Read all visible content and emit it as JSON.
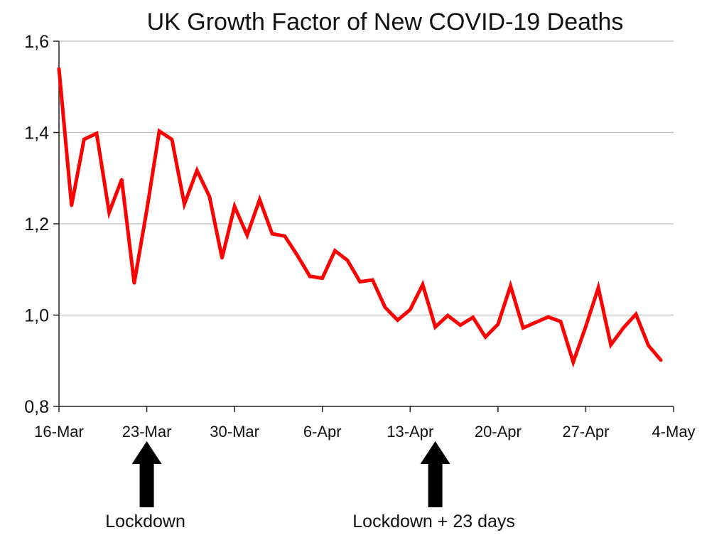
{
  "chart_data": {
    "type": "line",
    "title": "UK Growth Factor of New COVID-19 Deaths",
    "xlabel": "",
    "ylabel": "",
    "ylim": [
      0.8,
      1.6
    ],
    "y_ticks": [
      "0,8",
      "1,0",
      "1,2",
      "1,4",
      "1,6"
    ],
    "y_tick_values": [
      0.8,
      1.0,
      1.2,
      1.4,
      1.6
    ],
    "x_tick_labels": [
      "16-Mar",
      "23-Mar",
      "30-Mar",
      "6-Apr",
      "13-Apr",
      "20-Apr",
      "27-Apr",
      "4-May"
    ],
    "x_tick_dates": [
      "2020-03-16",
      "2020-03-23",
      "2020-03-30",
      "2020-04-06",
      "2020-04-13",
      "2020-04-20",
      "2020-04-27",
      "2020-05-04"
    ],
    "grid": true,
    "legend": "none",
    "series": [
      {
        "color": "#ff0000",
        "x": [
          "2020-03-16",
          "2020-03-17",
          "2020-03-18",
          "2020-03-19",
          "2020-03-20",
          "2020-03-21",
          "2020-03-22",
          "2020-03-23",
          "2020-03-24",
          "2020-03-25",
          "2020-03-26",
          "2020-03-27",
          "2020-03-28",
          "2020-03-29",
          "2020-03-30",
          "2020-03-31",
          "2020-04-01",
          "2020-04-02",
          "2020-04-03",
          "2020-04-04",
          "2020-04-05",
          "2020-04-06",
          "2020-04-07",
          "2020-04-08",
          "2020-04-09",
          "2020-04-10",
          "2020-04-11",
          "2020-04-12",
          "2020-04-13",
          "2020-04-14",
          "2020-04-15",
          "2020-04-16",
          "2020-04-17",
          "2020-04-18",
          "2020-04-19",
          "2020-04-20",
          "2020-04-21",
          "2020-04-22",
          "2020-04-23",
          "2020-04-24",
          "2020-04-25",
          "2020-04-26",
          "2020-04-27",
          "2020-04-28",
          "2020-04-29",
          "2020-04-30",
          "2020-05-01",
          "2020-05-02",
          "2020-05-03"
        ],
        "values": [
          1.54,
          1.24,
          1.385,
          1.398,
          1.225,
          1.297,
          1.07,
          1.23,
          1.403,
          1.385,
          1.243,
          1.317,
          1.26,
          1.125,
          1.238,
          1.175,
          1.253,
          1.178,
          1.173,
          1.131,
          1.085,
          1.081,
          1.141,
          1.12,
          1.073,
          1.077,
          1.017,
          0.989,
          1.012,
          1.067,
          0.974,
          0.999,
          0.978,
          0.995,
          0.952,
          0.98,
          1.064,
          0.972,
          0.984,
          0.996,
          0.986,
          0.897,
          0.975,
          1.06,
          0.935,
          0.972,
          1.002,
          0.933,
          0.901
        ]
      }
    ],
    "annotations": [
      {
        "label": "Lockdown",
        "date": "2020-03-23"
      },
      {
        "label": "Lockdown + 23 days",
        "date": "2020-04-15"
      }
    ]
  }
}
